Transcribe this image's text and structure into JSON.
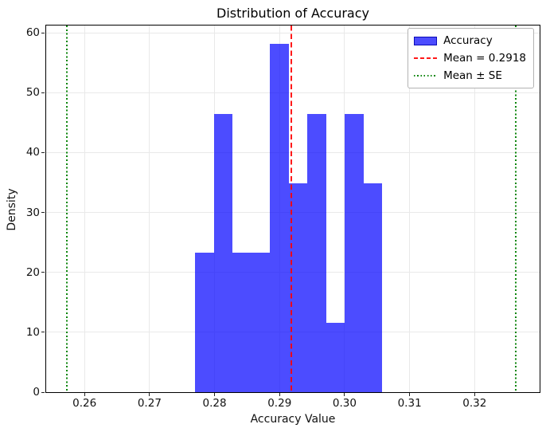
{
  "chart_data": {
    "type": "bar",
    "subtype": "histogram-density",
    "title": "Distribution of Accuracy",
    "xlabel": "Accuracy Value",
    "ylabel": "Density",
    "xlim": [
      0.2541,
      0.33
    ],
    "ylim": [
      0,
      61.2
    ],
    "grid": true,
    "xticks": {
      "values": [
        0.26,
        0.27,
        0.28,
        0.29,
        0.3,
        0.31,
        0.32
      ],
      "labels": [
        "0.26",
        "0.27",
        "0.28",
        "0.29",
        "0.30",
        "0.31",
        "0.32"
      ]
    },
    "yticks": {
      "values": [
        0,
        10,
        20,
        30,
        40,
        50,
        60
      ],
      "labels": [
        "0",
        "10",
        "20",
        "30",
        "40",
        "50",
        "60"
      ]
    },
    "bin_edges": [
      0.277,
      0.2799,
      0.2828,
      0.2856,
      0.2885,
      0.2914,
      0.2943,
      0.2972,
      0.3,
      0.3029,
      0.3058
    ],
    "densities": [
      23.3,
      46.5,
      23.3,
      23.3,
      58.1,
      34.9,
      46.5,
      11.6,
      46.5,
      34.9
    ],
    "bar_color": "#0000ff",
    "bar_alpha": 0.7,
    "mean_line": {
      "value": 0.2918,
      "color": "#ff0000",
      "style": "dashed"
    },
    "se_lines": {
      "values": [
        0.2573,
        0.3263
      ],
      "color": "#008000",
      "style": "dotted"
    },
    "legend": {
      "position": "upper right",
      "entries": [
        {
          "label": "Accuracy",
          "type": "patch",
          "color": "#0000ff"
        },
        {
          "label": "Mean = 0.2918",
          "type": "dashed-line",
          "color": "#ff0000"
        },
        {
          "label": "Mean ± SE",
          "type": "dotted-line",
          "color": "#008000"
        }
      ]
    }
  }
}
